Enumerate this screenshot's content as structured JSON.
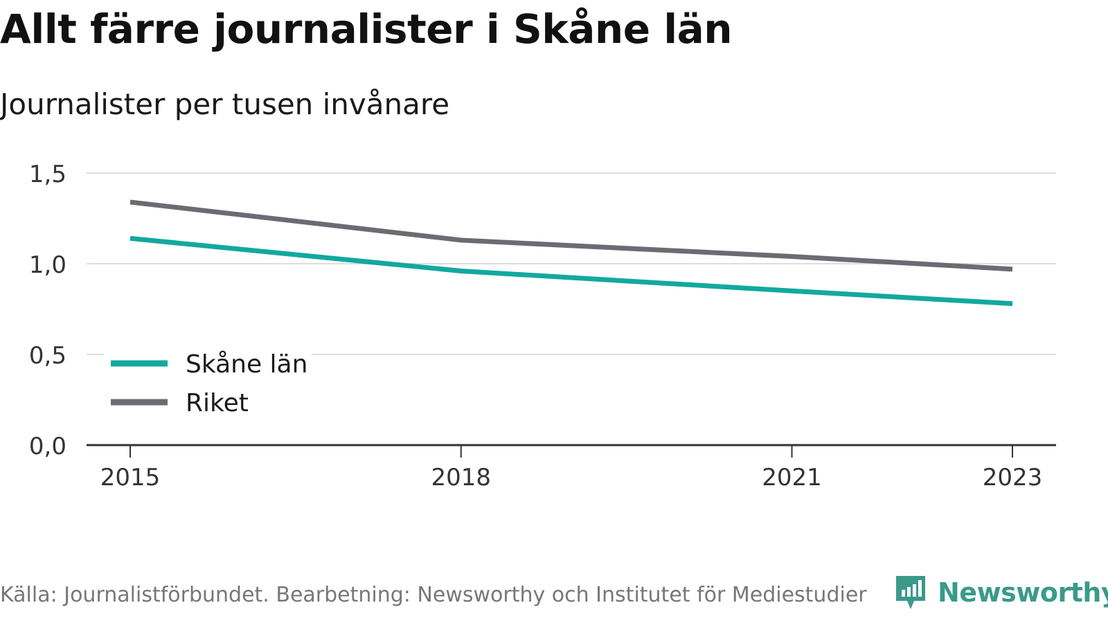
{
  "title": "Allt färre journalister i Skåne län",
  "subtitle": "Journalister per tusen invånare",
  "source": "Källa: Journalistförbundet. Bearbetning: Newsworthy och Institutet för Mediestudier",
  "brand": {
    "name": "Newsworthy",
    "color": "#3a9a8a",
    "icon": "newsworthy-logo-icon"
  },
  "colors": {
    "skane": "#13a89e",
    "riket": "#6b6b73",
    "grid": "#dddddd",
    "axis": "#333333"
  },
  "chart_data": {
    "type": "line",
    "x": [
      2015,
      2018,
      2021,
      2023
    ],
    "xticks": [
      "2015",
      "2018",
      "2021",
      "2023"
    ],
    "yticks": [
      "0,0",
      "0,5",
      "1,0",
      "1,5"
    ],
    "ylim": [
      0,
      1.5
    ],
    "grid": true,
    "legend_position": "bottom-left",
    "series": [
      {
        "name": "Skåne län",
        "color": "#13a89e",
        "values": [
          1.14,
          0.96,
          0.85,
          0.78
        ]
      },
      {
        "name": "Riket",
        "color": "#6b6b73",
        "values": [
          1.34,
          1.13,
          1.04,
          0.97
        ]
      }
    ]
  }
}
